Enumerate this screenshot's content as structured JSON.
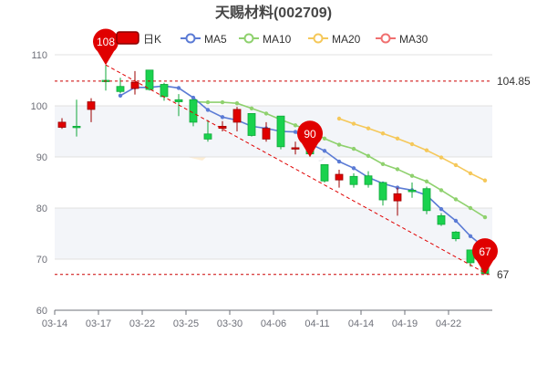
{
  "chart_data": {
    "type": "candlestick",
    "title": "天赐材料(002709)",
    "colors": {
      "up": "#e00000",
      "down": "#1ad24e",
      "ma5": "#5b7bd5",
      "ma10": "#8fd16e",
      "ma20": "#f5c85a",
      "ma30": "#f07070",
      "pin": "#e00000",
      "grid": "#e0e0e0",
      "band": "#f3f5f9"
    },
    "legend": [
      {
        "key": "k",
        "label": "日K"
      },
      {
        "key": "ma5",
        "label": "MA5"
      },
      {
        "key": "ma10",
        "label": "MA10"
      },
      {
        "key": "ma20",
        "label": "MA20"
      },
      {
        "key": "ma30",
        "label": "MA30"
      }
    ],
    "y_axis": {
      "min": 60,
      "max": 110,
      "ticks": [
        "60",
        "70",
        "80",
        "90",
        "100",
        "110"
      ]
    },
    "x_labels": [
      {
        "index": 0,
        "label": "03-14"
      },
      {
        "index": 3,
        "label": "03-17"
      },
      {
        "index": 6,
        "label": "03-22"
      },
      {
        "index": 9,
        "label": "03-25"
      },
      {
        "index": 12,
        "label": "03-30"
      },
      {
        "index": 15,
        "label": "04-06"
      },
      {
        "index": 18,
        "label": "04-11"
      },
      {
        "index": 21,
        "label": "04-14"
      },
      {
        "index": 24,
        "label": "04-19"
      },
      {
        "index": 27,
        "label": "04-22"
      }
    ],
    "candles": [
      {
        "o": 95.8,
        "c": 96.8,
        "h": 97.6,
        "l": 95.5
      },
      {
        "o": 96.0,
        "c": 95.8,
        "h": 101.2,
        "l": 94.0
      },
      {
        "o": 99.3,
        "c": 100.8,
        "h": 101.5,
        "l": 96.8
      },
      {
        "o": 105.0,
        "c": 104.8,
        "h": 108.0,
        "l": 103.0
      },
      {
        "o": 103.8,
        "c": 102.8,
        "h": 105.5,
        "l": 102.5
      },
      {
        "o": 103.4,
        "c": 104.6,
        "h": 106.8,
        "l": 102.2
      },
      {
        "o": 107.0,
        "c": 103.2,
        "h": 107.0,
        "l": 103.0
      },
      {
        "o": 104.2,
        "c": 101.8,
        "h": 104.5,
        "l": 101.0
      },
      {
        "o": 101.2,
        "c": 100.8,
        "h": 102.3,
        "l": 98.0
      },
      {
        "o": 101.2,
        "c": 96.8,
        "h": 101.2,
        "l": 96.0
      },
      {
        "o": 94.5,
        "c": 93.5,
        "h": 97.2,
        "l": 93.0
      },
      {
        "o": 95.6,
        "c": 96.0,
        "h": 97.0,
        "l": 95.0
      },
      {
        "o": 96.8,
        "c": 99.3,
        "h": 99.8,
        "l": 95.0
      },
      {
        "o": 98.5,
        "c": 94.2,
        "h": 98.5,
        "l": 94.0
      },
      {
        "o": 93.5,
        "c": 95.6,
        "h": 96.8,
        "l": 93.0
      },
      {
        "o": 98.0,
        "c": 92.0,
        "h": 98.0,
        "l": 91.5
      },
      {
        "o": 91.6,
        "c": 91.8,
        "h": 93.0,
        "l": 90.5
      },
      {
        "o": 92.0,
        "c": 90.6,
        "h": 92.3,
        "l": 90.0
      },
      {
        "o": 88.5,
        "c": 85.3,
        "h": 88.5,
        "l": 85.0
      },
      {
        "o": 85.5,
        "c": 86.6,
        "h": 87.5,
        "l": 84.0
      },
      {
        "o": 86.2,
        "c": 84.6,
        "h": 86.8,
        "l": 84.0
      },
      {
        "o": 86.3,
        "c": 84.6,
        "h": 87.2,
        "l": 84.0
      },
      {
        "o": 85.0,
        "c": 81.6,
        "h": 85.0,
        "l": 80.5
      },
      {
        "o": 81.4,
        "c": 82.8,
        "h": 84.0,
        "l": 78.5
      },
      {
        "o": 83.5,
        "c": 83.2,
        "h": 85.0,
        "l": 82.0
      },
      {
        "o": 83.8,
        "c": 79.5,
        "h": 84.2,
        "l": 78.8
      },
      {
        "o": 78.5,
        "c": 76.8,
        "h": 79.0,
        "l": 76.5
      },
      {
        "o": 75.3,
        "c": 74.0,
        "h": 75.5,
        "l": 73.5
      },
      {
        "o": 71.8,
        "c": 69.3,
        "h": 71.8,
        "l": 68.5
      },
      {
        "o": 68.6,
        "c": 67.2,
        "h": 69.5,
        "l": 67.0
      }
    ],
    "ma5": [
      null,
      null,
      null,
      null,
      102.0,
      103.6,
      103.6,
      103.9,
      103.5,
      101.6,
      99.2,
      97.8,
      97.2,
      96.0,
      95.6,
      95.0,
      94.9,
      92.6,
      91.2,
      89.1,
      87.8,
      86.0,
      84.8,
      84.0,
      83.5,
      82.5,
      79.8,
      77.5,
      74.5,
      72.2
    ],
    "ma10": [
      null,
      null,
      null,
      null,
      null,
      null,
      null,
      null,
      null,
      100.8,
      100.7,
      100.7,
      100.5,
      99.5,
      98.5,
      97.3,
      96.2,
      95.1,
      93.6,
      92.4,
      91.6,
      90.2,
      88.6,
      87.6,
      86.3,
      85.2,
      83.5,
      81.7,
      80.0,
      78.2
    ],
    "ma20": [
      null,
      null,
      null,
      null,
      null,
      null,
      null,
      null,
      null,
      null,
      null,
      null,
      null,
      null,
      null,
      null,
      null,
      null,
      null,
      97.5,
      96.5,
      95.6,
      94.6,
      93.6,
      92.5,
      91.3,
      89.9,
      88.4,
      86.8,
      85.4
    ],
    "pins": [
      {
        "index": 3,
        "value": 108.0,
        "label": "108"
      },
      {
        "index": 17,
        "value": 90.0,
        "label": "90"
      },
      {
        "index": 29,
        "value": 67.0,
        "label": "67"
      }
    ],
    "reference_lines": [
      {
        "value": 104.85,
        "label": "104.85"
      },
      {
        "value": 67,
        "label": "67"
      }
    ],
    "grid": true,
    "legend_position": "top"
  }
}
